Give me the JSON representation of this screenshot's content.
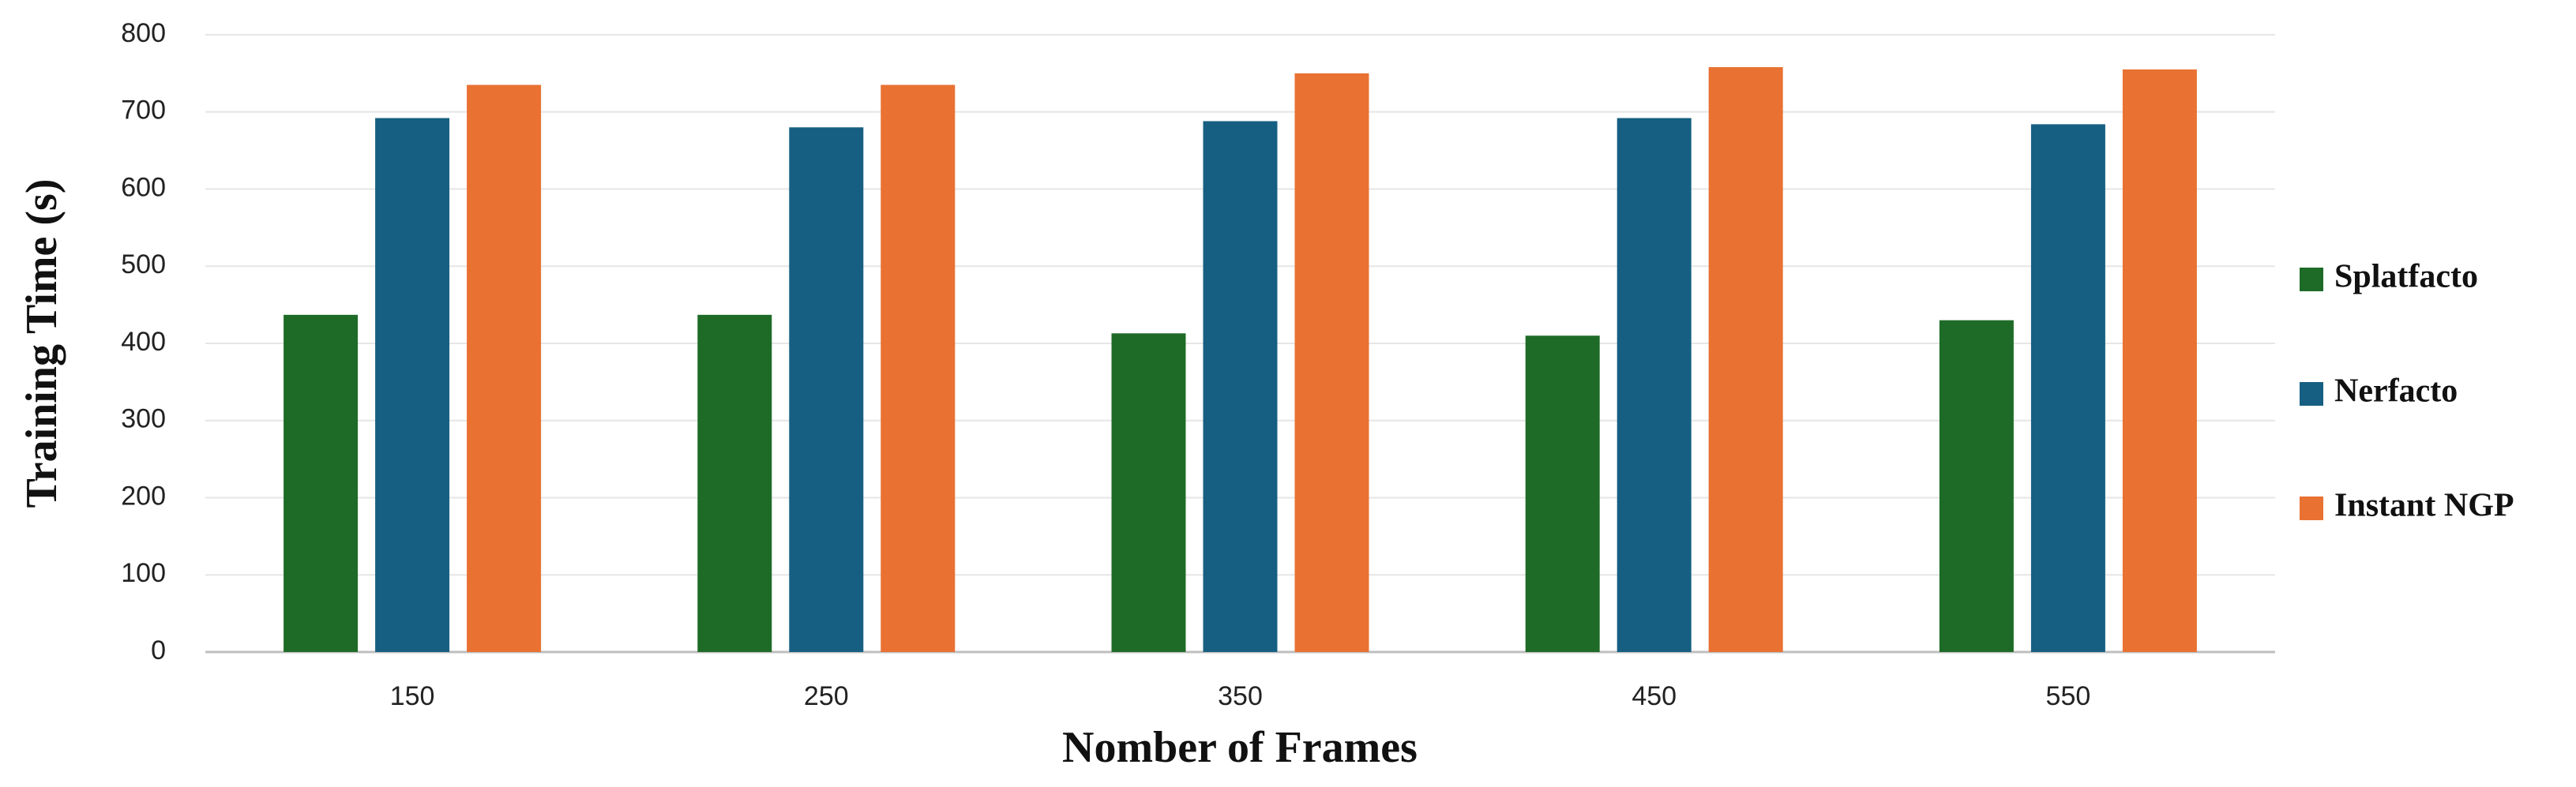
{
  "chart_data": {
    "type": "bar",
    "x_label": "Nomber of Frames",
    "y_label": "Training Time (s)",
    "categories": [
      "150",
      "250",
      "350",
      "450",
      "550"
    ],
    "series": [
      {
        "name": "Splatfacto",
        "color": "#1e6b27",
        "values": [
          437,
          437,
          413,
          410,
          430
        ]
      },
      {
        "name": "Nerfacto",
        "color": "#175f82",
        "values": [
          692,
          680,
          688,
          692,
          684
        ]
      },
      {
        "name": "Instant NGP",
        "color": "#e97132",
        "values": [
          735,
          735,
          750,
          758,
          755
        ]
      }
    ],
    "ylim": [
      0,
      800
    ],
    "yticks": [
      0,
      100,
      200,
      300,
      400,
      500,
      600,
      700,
      800
    ],
    "grid": true,
    "legend": "right"
  }
}
